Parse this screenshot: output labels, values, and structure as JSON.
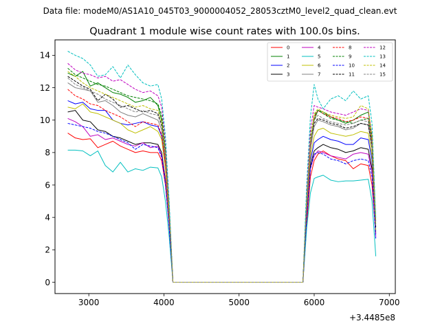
{
  "chart_data": {
    "type": "line",
    "suptitle": "Data file: modeM0/AS1A10_045T03_9000004052_28053cztM0_level2_quad_clean.evt",
    "title": "Quadrant 1 module wise count rates with 100.0s bins.",
    "xlabel": "",
    "ylabel": "",
    "x_offset_label": "+3.4485e8",
    "xlim": [
      2550,
      7080
    ],
    "ylim": [
      -0.7,
      14.95
    ],
    "xticks": [
      3000,
      4000,
      5000,
      6000,
      7000
    ],
    "xtick_labels": [
      "3000",
      "4000",
      "5000",
      "6000",
      "7000"
    ],
    "yticks": [
      0,
      2,
      4,
      6,
      8,
      10,
      12,
      14
    ],
    "ytick_labels": [
      "0",
      "2",
      "4",
      "6",
      "8",
      "10",
      "12",
      "14"
    ],
    "legend_position": "upper right",
    "x": [
      2720,
      2820,
      2920,
      3020,
      3120,
      3220,
      3320,
      3420,
      3520,
      3620,
      3720,
      3820,
      3920,
      3970,
      4020,
      4070,
      4120,
      5850,
      5900,
      5950,
      6000,
      6050,
      6120,
      6220,
      6320,
      6420,
      6520,
      6620,
      6720,
      6770,
      6820
    ],
    "series": [
      {
        "name": "0",
        "color": "#ff0000",
        "dash": "solid",
        "values": [
          9.2,
          8.9,
          8.8,
          8.85,
          8.3,
          8.5,
          8.7,
          8.4,
          8.2,
          8.0,
          8.1,
          8.0,
          8.0,
          7.5,
          6.0,
          3.5,
          0.0,
          0.0,
          3.5,
          6.5,
          7.5,
          7.9,
          8.1,
          7.8,
          7.6,
          7.5,
          7.0,
          7.3,
          7.2,
          6.0,
          3.0
        ]
      },
      {
        "name": "1",
        "color": "#008000",
        "dash": "solid",
        "values": [
          12.9,
          12.7,
          13.0,
          12.1,
          12.3,
          12.0,
          11.7,
          11.6,
          11.4,
          11.1,
          11.2,
          11.4,
          10.9,
          10.0,
          8.0,
          4.5,
          0.0,
          0.0,
          5.0,
          8.5,
          10.0,
          10.6,
          10.5,
          10.2,
          10.0,
          9.8,
          10.0,
          10.3,
          10.5,
          9.0,
          3.8
        ]
      },
      {
        "name": "2",
        "color": "#0000ff",
        "dash": "solid",
        "values": [
          11.2,
          11.0,
          11.1,
          10.7,
          10.6,
          10.6,
          10.0,
          9.8,
          9.7,
          9.8,
          9.9,
          9.7,
          9.6,
          9.0,
          7.2,
          4.0,
          0.0,
          0.0,
          4.5,
          7.5,
          8.6,
          8.8,
          9.0,
          8.8,
          8.7,
          8.5,
          8.5,
          8.9,
          8.8,
          7.5,
          3.2
        ]
      },
      {
        "name": "3",
        "color": "#000000",
        "dash": "solid",
        "values": [
          10.5,
          10.6,
          10.0,
          9.9,
          9.4,
          9.3,
          9.0,
          8.9,
          8.7,
          8.5,
          8.6,
          8.6,
          8.5,
          8.0,
          6.3,
          3.6,
          0.0,
          0.0,
          4.2,
          7.2,
          8.1,
          8.3,
          8.5,
          8.3,
          8.2,
          8.0,
          8.1,
          8.3,
          8.2,
          7.0,
          3.0
        ]
      },
      {
        "name": "4",
        "color": "#bf00bf",
        "dash": "solid",
        "values": [
          10.1,
          9.9,
          9.6,
          9.0,
          9.1,
          8.8,
          8.9,
          8.7,
          8.5,
          8.4,
          8.6,
          8.3,
          8.4,
          7.8,
          6.2,
          3.4,
          0.0,
          0.0,
          4.0,
          7.0,
          7.8,
          8.1,
          8.0,
          7.8,
          7.7,
          7.6,
          7.9,
          8.0,
          7.9,
          6.8,
          2.8
        ]
      },
      {
        "name": "5",
        "color": "#00bfbf",
        "dash": "solid",
        "values": [
          8.15,
          8.15,
          8.1,
          7.8,
          8.1,
          7.2,
          6.8,
          7.4,
          6.8,
          7.0,
          6.9,
          7.1,
          7.05,
          6.5,
          5.0,
          2.8,
          0.0,
          0.0,
          3.3,
          5.5,
          6.4,
          6.5,
          6.6,
          6.3,
          6.2,
          6.25,
          6.25,
          6.3,
          6.35,
          5.0,
          1.6
        ]
      },
      {
        "name": "6",
        "color": "#bfbf00",
        "dash": "solid",
        "values": [
          10.8,
          10.7,
          11.0,
          10.5,
          10.4,
          10.2,
          10.0,
          9.8,
          9.4,
          9.2,
          9.4,
          9.6,
          9.3,
          8.8,
          7.0,
          3.8,
          0.0,
          0.0,
          4.5,
          7.8,
          9.0,
          9.4,
          9.5,
          9.2,
          9.1,
          9.0,
          9.1,
          9.3,
          9.2,
          7.8,
          3.2
        ]
      },
      {
        "name": "7",
        "color": "#808080",
        "dash": "solid",
        "values": [
          12.3,
          12.0,
          11.9,
          11.8,
          11.1,
          11.2,
          10.9,
          10.5,
          10.3,
          10.2,
          10.4,
          10.2,
          10.0,
          9.4,
          7.5,
          4.2,
          0.0,
          0.0,
          4.8,
          8.2,
          9.6,
          10.0,
          9.9,
          9.7,
          9.6,
          9.4,
          9.5,
          9.8,
          9.7,
          8.3,
          3.4
        ]
      },
      {
        "name": "8",
        "color": "#ff0000",
        "dash": "dashed",
        "values": [
          11.9,
          11.5,
          11.3,
          11.0,
          10.9,
          10.6,
          10.4,
          10.2,
          9.9,
          9.6,
          9.9,
          9.8,
          9.7,
          9.1,
          7.3,
          4.1,
          0.0,
          0.0,
          4.8,
          8.4,
          10.2,
          10.6,
          10.4,
          10.2,
          10.1,
          9.9,
          10.0,
          10.2,
          10.1,
          8.6,
          3.5
        ]
      },
      {
        "name": "9",
        "color": "#008000",
        "dash": "dashed",
        "values": [
          13.2,
          12.8,
          12.6,
          12.4,
          12.2,
          12.1,
          11.9,
          11.7,
          11.5,
          11.4,
          11.3,
          11.2,
          11.0,
          10.3,
          8.2,
          4.6,
          0.0,
          0.0,
          5.2,
          9.0,
          10.3,
          10.6,
          10.4,
          10.1,
          10.0,
          9.9,
          9.8,
          10.0,
          10.1,
          8.8,
          3.6
        ]
      },
      {
        "name": "10",
        "color": "#0000ff",
        "dash": "dashed",
        "values": [
          9.8,
          9.7,
          9.6,
          9.5,
          9.3,
          9.2,
          9.0,
          8.8,
          8.6,
          8.2,
          8.5,
          8.4,
          8.3,
          7.7,
          6.1,
          3.4,
          0.0,
          0.0,
          4.0,
          7.0,
          7.9,
          8.0,
          7.9,
          7.6,
          7.5,
          7.3,
          7.5,
          7.6,
          7.5,
          6.5,
          2.7
        ]
      },
      {
        "name": "11",
        "color": "#000000",
        "dash": "dashed",
        "values": [
          12.7,
          12.4,
          12.1,
          11.9,
          11.2,
          11.6,
          11.3,
          10.8,
          10.9,
          10.7,
          10.5,
          10.6,
          10.4,
          9.7,
          7.8,
          4.3,
          0.0,
          0.0,
          4.9,
          8.6,
          9.8,
          10.1,
          10.0,
          9.8,
          9.7,
          9.5,
          9.6,
          9.8,
          9.7,
          8.3,
          3.4
        ]
      },
      {
        "name": "12",
        "color": "#bf00bf",
        "dash": "dashed",
        "values": [
          13.5,
          13.1,
          12.9,
          12.8,
          12.6,
          12.7,
          12.4,
          12.5,
          12.2,
          11.9,
          11.7,
          11.8,
          11.5,
          10.8,
          8.6,
          4.8,
          0.0,
          0.0,
          5.5,
          9.4,
          10.9,
          10.8,
          10.7,
          10.5,
          10.4,
          10.3,
          10.5,
          10.7,
          10.6,
          9.1,
          3.7
        ]
      },
      {
        "name": "13",
        "color": "#00bfbf",
        "dash": "dashed",
        "values": [
          14.25,
          14.0,
          13.8,
          13.4,
          12.7,
          12.8,
          13.3,
          12.6,
          13.4,
          12.8,
          12.3,
          12.1,
          12.2,
          11.3,
          9.0,
          5.0,
          0.0,
          0.0,
          6.0,
          10.2,
          12.2,
          11.3,
          10.7,
          11.3,
          11.5,
          11.2,
          11.8,
          11.3,
          11.5,
          9.8,
          4.0
        ]
      },
      {
        "name": "14",
        "color": "#bfbf00",
        "dash": "dashed",
        "values": [
          13.0,
          12.7,
          12.3,
          12.0,
          11.8,
          11.6,
          11.4,
          11.2,
          11.0,
          10.8,
          10.9,
          10.7,
          10.6,
          9.9,
          7.9,
          4.4,
          0.0,
          0.0,
          5.0,
          8.8,
          10.4,
          10.7,
          10.5,
          10.3,
          10.2,
          10.1,
          10.2,
          10.9,
          10.7,
          9.0,
          3.6
        ]
      },
      {
        "name": "15",
        "color": "#808080",
        "dash": "dashed",
        "values": [
          12.6,
          12.2,
          12.0,
          11.8,
          11.6,
          11.3,
          11.1,
          10.9,
          10.7,
          10.5,
          10.6,
          10.4,
          10.3,
          9.6,
          7.7,
          4.3,
          0.0,
          0.0,
          4.9,
          8.6,
          10.0,
          10.3,
          10.1,
          9.9,
          9.8,
          9.7,
          9.8,
          10.0,
          9.9,
          8.5,
          3.4
        ]
      }
    ]
  }
}
